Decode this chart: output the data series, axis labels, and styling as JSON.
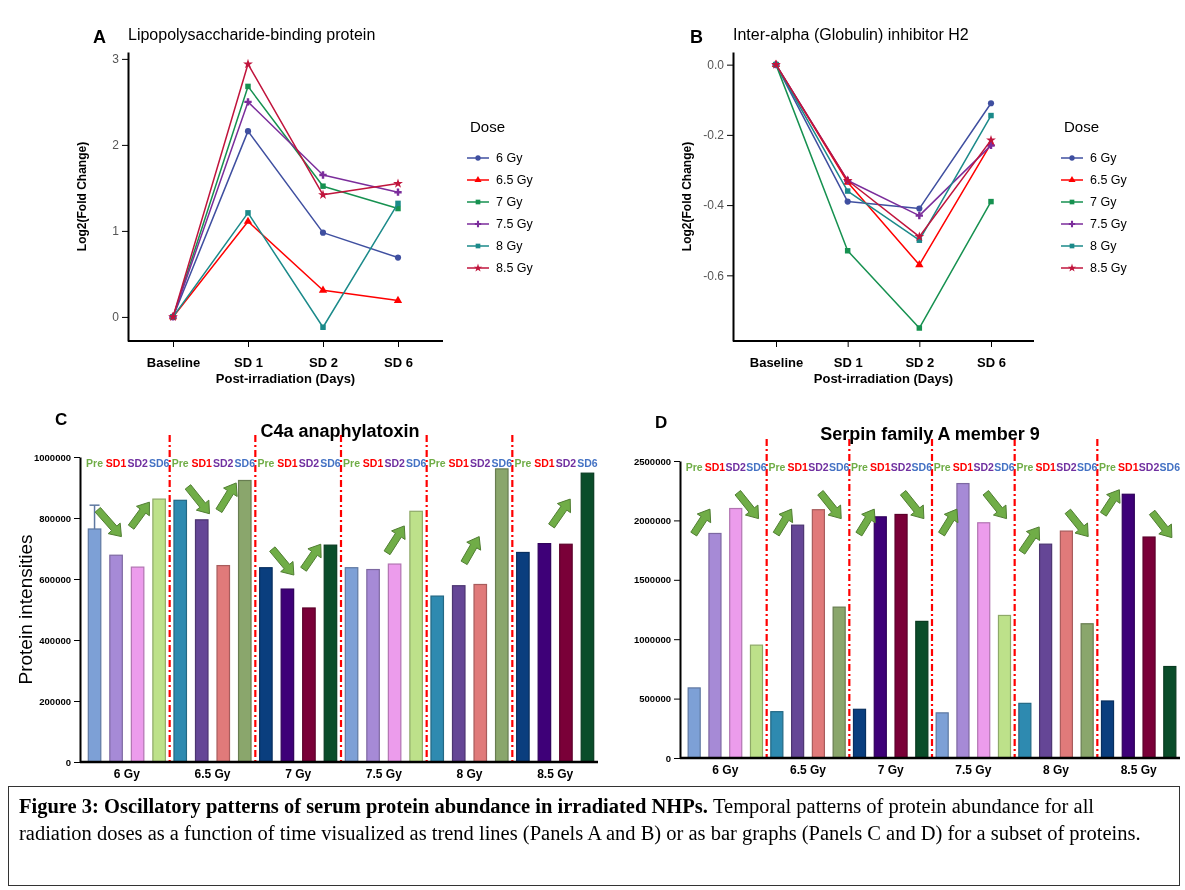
{
  "chart_data": [
    {
      "type": "line",
      "title": "Lipopolysaccharide-binding protein",
      "annotations": [
        "A"
      ],
      "xlabel": "Post-irradiation (Days)",
      "ylabel": "Log2(Fold Change)",
      "legend_title": "Dose",
      "legend": "right",
      "categories": [
        "Baseline",
        "SD 1",
        "SD 2",
        "SD 6"
      ],
      "ylim": [
        -0.28,
        3.08
      ],
      "yticks": [
        0,
        1,
        2,
        3
      ],
      "series": [
        {
          "name": "6 Gy",
          "color": "#3f4fa0",
          "marker": "circle",
          "values": [
            0,
            2.16,
            0.98,
            0.69
          ]
        },
        {
          "name": "6.5 Gy",
          "color": "#ff0000",
          "marker": "triangle",
          "values": [
            0,
            1.11,
            0.31,
            0.19
          ]
        },
        {
          "name": "7 Gy",
          "color": "#169150",
          "marker": "square",
          "values": [
            0,
            2.68,
            1.52,
            1.26
          ]
        },
        {
          "name": "7.5 Gy",
          "color": "#7b2d9b",
          "marker": "cross",
          "values": [
            0,
            2.5,
            1.65,
            1.45
          ]
        },
        {
          "name": "8 Gy",
          "color": "#1b8a8a",
          "marker": "square",
          "values": [
            0,
            1.21,
            -0.12,
            1.32
          ]
        },
        {
          "name": "8.5 Gy",
          "color": "#c0143c",
          "marker": "star",
          "values": [
            0,
            2.94,
            1.42,
            1.55
          ]
        }
      ]
    },
    {
      "type": "line",
      "title": "Inter-alpha (Globulin) inhibitor H2",
      "annotations": [
        "B"
      ],
      "xlabel": "Post-irradiation (Days)",
      "ylabel": "Log2(Fold Change)",
      "legend_title": "Dose",
      "legend": "right",
      "categories": [
        "Baseline",
        "SD 1",
        "SD 2",
        "SD 6"
      ],
      "ylim": [
        -0.787,
        0.036
      ],
      "yticks": [
        {
          "value": 0,
          "label": "0.0"
        },
        -0.2,
        -0.4,
        -0.6
      ],
      "series": [
        {
          "name": "6 Gy",
          "color": "#3f4fa0",
          "marker": "circle",
          "values": [
            0,
            -0.39,
            -0.41,
            -0.11
          ]
        },
        {
          "name": "6.5 Gy",
          "color": "#ff0000",
          "marker": "triangle",
          "values": [
            0,
            -0.335,
            -0.57,
            -0.225
          ]
        },
        {
          "name": "7 Gy",
          "color": "#169150",
          "marker": "square",
          "values": [
            0,
            -0.53,
            -0.75,
            -0.39
          ]
        },
        {
          "name": "7.5 Gy",
          "color": "#7b2d9b",
          "marker": "cross",
          "values": [
            0,
            -0.33,
            -0.43,
            -0.23
          ]
        },
        {
          "name": "8 Gy",
          "color": "#1b8a8a",
          "marker": "square",
          "values": [
            0,
            -0.36,
            -0.5,
            -0.145
          ]
        },
        {
          "name": "8.5 Gy",
          "color": "#c0143c",
          "marker": "star",
          "values": [
            0,
            -0.33,
            -0.49,
            -0.215
          ]
        }
      ]
    },
    {
      "type": "bar",
      "title": "C4a anaphylatoxin",
      "annotations": [
        "C",
        "Pre",
        "SD1",
        "SD2",
        "SD6"
      ],
      "ylabel": "Protein intensities",
      "categories": [
        "6 Gy",
        "6.5 Gy",
        "7 Gy",
        "7.5 Gy",
        "8 Gy",
        "8.5 Gy"
      ],
      "ylim": [
        0,
        1000000
      ],
      "yticks": [
        0,
        200000,
        400000,
        600000,
        800000,
        1000000
      ],
      "series": [
        {
          "colors": [
            "#7da0d6",
            "#2e8ab0",
            "#0a3e7e",
            "#7da0d6",
            "#2e8ab0",
            "#0a3e7e"
          ],
          "values": [
            764000,
            858000,
            637000,
            637000,
            544000,
            687000
          ],
          "errors": [
            [
              764000,
              842000
            ],
            null,
            null,
            null,
            null,
            null
          ]
        },
        {
          "colors": [
            "#a68ad6",
            "#654696",
            "#3e0078",
            "#a68ad6",
            "#654696",
            "#3e0078"
          ],
          "values": [
            678000,
            794000,
            567000,
            631000,
            578000,
            716000
          ]
        },
        {
          "colors": [
            "#ec9cec",
            "#e07a7a",
            "#7a0038",
            "#ec9cec",
            "#e07a7a",
            "#7a0038"
          ],
          "values": [
            639000,
            644000,
            505000,
            649000,
            582000,
            714000
          ]
        },
        {
          "colors": [
            "#bde18a",
            "#8aa66c",
            "#0a4d2a",
            "#bde18a",
            "#8aa66c",
            "#0a4d2a"
          ],
          "values": [
            862000,
            923000,
            711000,
            822000,
            961000,
            947000
          ]
        }
      ]
    },
    {
      "type": "bar",
      "title": "Serpin family A member 9",
      "annotations": [
        "D",
        "Pre",
        "SD1",
        "SD2",
        "SD6"
      ],
      "categories": [
        "6 Gy",
        "6.5 Gy",
        "7 Gy",
        "7.5 Gy",
        "8 Gy",
        "8.5 Gy"
      ],
      "ylim": [
        0,
        2500000
      ],
      "yticks": [
        0,
        500000,
        1000000,
        1500000,
        2000000,
        2500000
      ],
      "series": [
        {
          "colors": [
            "#7da0d6",
            "#2e8ab0",
            "#0a3e7e",
            "#7da0d6",
            "#2e8ab0",
            "#0a3e7e"
          ],
          "values": [
            590000,
            390000,
            410000,
            380000,
            460000,
            480000
          ]
        },
        {
          "colors": [
            "#a68ad6",
            "#654696",
            "#3e0078",
            "#a68ad6",
            "#654696",
            "#3e0078"
          ],
          "values": [
            1890000,
            1960000,
            2030000,
            2310000,
            1800000,
            2220000
          ]
        },
        {
          "colors": [
            "#ec9cec",
            "#e07a7a",
            "#7a0038",
            "#ec9cec",
            "#e07a7a",
            "#7a0038"
          ],
          "values": [
            2100000,
            2090000,
            2050000,
            1980000,
            1910000,
            1860000
          ]
        },
        {
          "colors": [
            "#bde18a",
            "#8aa66c",
            "#0a4d2a",
            "#bde18a",
            "#8aa66c",
            "#0a4d2a"
          ],
          "values": [
            950000,
            1270000,
            1150000,
            1200000,
            1130000,
            770000
          ]
        }
      ]
    },
    {
      "type": "other",
      "title": "Figure 3: Oscillatory patterns of serum protein abundance in irradiated NHPs.",
      "annotations": [
        "Temporal patterns of protein abundance for all radiation doses as a function of time visualized as trend lines (Panels A and B) or as bar graphs (Panels C and D) for a subset of proteins."
      ]
    }
  ]
}
